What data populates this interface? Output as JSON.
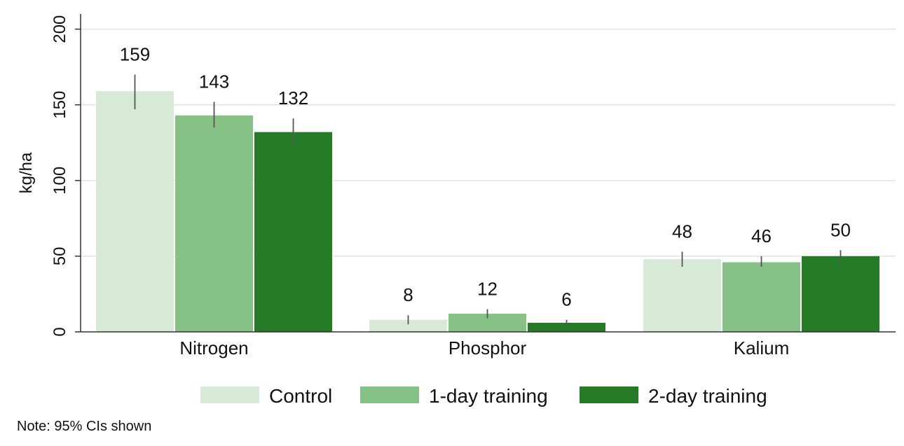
{
  "chart_data": {
    "type": "bar",
    "title": "",
    "xlabel": "",
    "ylabel": "kg/ha",
    "ylim": [
      0,
      210
    ],
    "yticks": [
      0,
      50,
      100,
      150,
      200
    ],
    "grid": true,
    "legend_position": "bottom",
    "categories": [
      "Nitrogen",
      "Phosphor",
      "Kalium"
    ],
    "series": [
      {
        "name": "Control",
        "color": "#d6ead6",
        "values": [
          159,
          8,
          48
        ],
        "ci_low": [
          147,
          5,
          43
        ],
        "ci_high": [
          170,
          11,
          53
        ]
      },
      {
        "name": "1-day training",
        "color": "#86c286",
        "values": [
          143,
          12,
          46
        ],
        "ci_low": [
          135,
          9,
          43
        ],
        "ci_high": [
          152,
          15,
          50
        ]
      },
      {
        "name": "2-day training",
        "color": "#257a25",
        "values": [
          132,
          6,
          50
        ],
        "ci_low": [
          122,
          4,
          46
        ],
        "ci_high": [
          141,
          8,
          54
        ]
      }
    ],
    "data_labels": [
      [
        "159",
        "8",
        "48"
      ],
      [
        "143",
        "12",
        "46"
      ],
      [
        "132",
        "6",
        "50"
      ]
    ]
  },
  "note": "Note:  95% CIs shown"
}
